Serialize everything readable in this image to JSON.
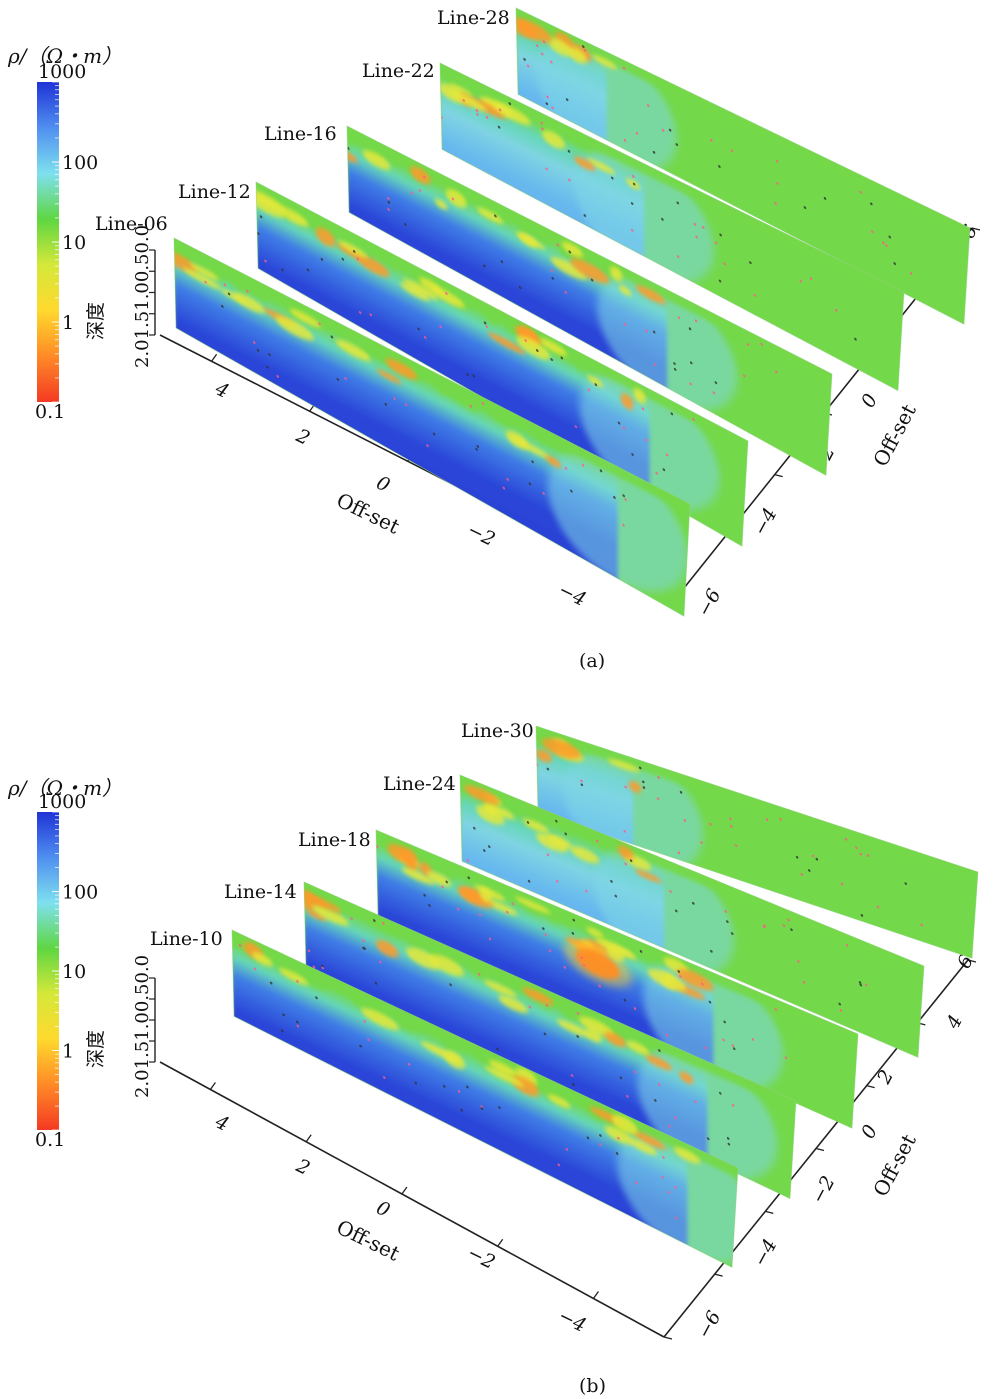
{
  "chart_data": [
    {
      "type": "heatmap",
      "panel_label": "(a)",
      "colorbar": {
        "title": "ρ/（Ω・m）",
        "scale": "log",
        "range": [
          0.1,
          1000
        ],
        "ticks": [
          "1000",
          "100",
          "10",
          "1",
          "0.1"
        ],
        "colors": [
          "#1f33d6",
          "#4f8ff0",
          "#7fe0ee",
          "#5fd642",
          "#d4e83a",
          "#ffd92e",
          "#ff8a26",
          "#f43a24"
        ]
      },
      "depth_axis": {
        "label": "深度",
        "ticks": "2.01.51.00.50.0"
      },
      "offset_axis_front": {
        "label": "Off-set",
        "ticks": [
          "4",
          "2",
          "0",
          "−2",
          "−4"
        ]
      },
      "offset_axis_side": {
        "label": "Off-set",
        "ticks": [
          "6",
          "4",
          "2",
          "0",
          "−2",
          "−4",
          "−6"
        ]
      },
      "series": [
        {
          "name": "Line-06"
        },
        {
          "name": "Line-12"
        },
        {
          "name": "Line-16"
        },
        {
          "name": "Line-22"
        },
        {
          "name": "Line-28"
        }
      ]
    },
    {
      "type": "heatmap",
      "panel_label": "(b)",
      "colorbar": {
        "title": "ρ/（Ω・m）",
        "scale": "log",
        "range": [
          0.1,
          1000
        ],
        "ticks": [
          "1000",
          "100",
          "10",
          "1",
          "0.1"
        ],
        "colors": [
          "#1f33d6",
          "#4f8ff0",
          "#7fe0ee",
          "#5fd642",
          "#d4e83a",
          "#ffd92e",
          "#ff8a26",
          "#f43a24"
        ]
      },
      "depth_axis": {
        "label": "深度",
        "ticks": "2.01.51.00.50.0"
      },
      "offset_axis_front": {
        "label": "Off-set",
        "ticks": [
          "4",
          "2",
          "0",
          "−2",
          "−4"
        ]
      },
      "offset_axis_side": {
        "label": "Off-set",
        "ticks": [
          "6",
          "4",
          "2",
          "0",
          "−2",
          "−4",
          "−6"
        ]
      },
      "series": [
        {
          "name": "Line-10"
        },
        {
          "name": "Line-14"
        },
        {
          "name": "Line-18"
        },
        {
          "name": "Line-24"
        },
        {
          "name": "Line-30"
        }
      ]
    }
  ]
}
